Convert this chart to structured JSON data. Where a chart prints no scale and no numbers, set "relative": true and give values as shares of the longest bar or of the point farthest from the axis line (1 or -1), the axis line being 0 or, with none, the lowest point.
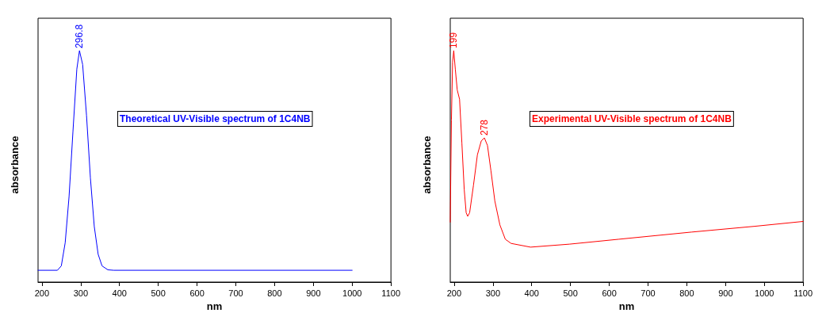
{
  "chart_data": [
    {
      "type": "line",
      "relative": true,
      "xlabel": "nm",
      "ylabel": "absorbance",
      "marker": "none",
      "line_style": "solid",
      "xlim": [
        190,
        1100
      ],
      "xticks": [
        200,
        300,
        400,
        500,
        600,
        700,
        800,
        900,
        1000,
        1100
      ],
      "annotations": [
        "Theoretical UV-Visible spectrum of 1C4NB",
        {
          "text": "296.8",
          "x": 296.8,
          "y": 1
        }
      ],
      "series": [
        {
          "color": "#0000ff",
          "x": [
            190,
            240,
            250,
            260,
            270,
            280,
            290,
            296.8,
            305,
            315,
            325,
            335,
            345,
            355,
            370,
            385,
            1000
          ],
          "values": [
            0.051,
            0.051,
            0.07,
            0.17,
            0.37,
            0.65,
            0.92,
            1,
            0.94,
            0.72,
            0.45,
            0.24,
            0.12,
            0.07,
            0.053,
            0.051,
            0.051
          ]
        }
      ]
    },
    {
      "type": "line",
      "relative": true,
      "xlabel": "nm",
      "ylabel": "absorbance",
      "marker": "none",
      "line_style": "solid",
      "xlim": [
        190,
        1100
      ],
      "xticks": [
        200,
        300,
        400,
        500,
        600,
        700,
        800,
        900,
        1000,
        1100
      ],
      "annotations": [
        "Experimental UV-Visible spectrum of 1C4NB",
        {
          "text": "199",
          "x": 199,
          "y": 1
        },
        {
          "text": "278",
          "x": 278,
          "y": 0.623
        }
      ],
      "series": [
        {
          "color": "#ff0000",
          "x": [
            190,
            193,
            196,
            199,
            203,
            208,
            214,
            220,
            226,
            231,
            235,
            240,
            250,
            260,
            270,
            278,
            286,
            295,
            305,
            318,
            332,
            347,
            397,
            498,
            624,
            812,
            975,
            1100
          ],
          "values": [
            0.259,
            0.7,
            0.95,
            1,
            0.92,
            0.83,
            0.79,
            0.6,
            0.4,
            0.3,
            0.284,
            0.3,
            0.42,
            0.55,
            0.61,
            0.623,
            0.59,
            0.48,
            0.35,
            0.247,
            0.185,
            0.167,
            0.151,
            0.164,
            0.185,
            0.216,
            0.241,
            0.262
          ]
        }
      ]
    }
  ]
}
